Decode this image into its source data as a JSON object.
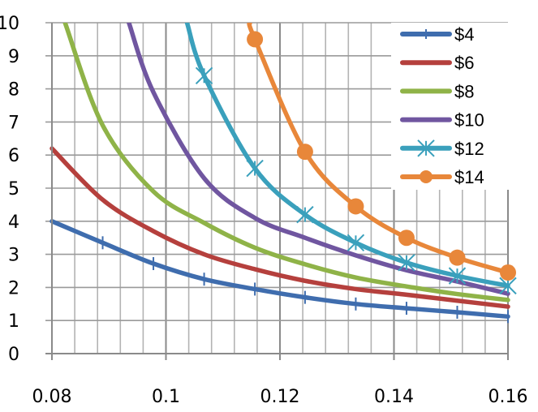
{
  "chart_data": {
    "type": "line",
    "title": "",
    "xlabel": "",
    "ylabel": "",
    "xlim": [
      0.08,
      0.16
    ],
    "ylim": [
      0,
      10
    ],
    "x_ticks": [
      "0.08",
      "0.1",
      "0.12",
      "0.14",
      "0.16"
    ],
    "x_tick_values": [
      0.08,
      0.1,
      0.12,
      0.14,
      0.16
    ],
    "y_ticks": [
      "0",
      "1",
      "2",
      "3",
      "4",
      "5",
      "6",
      "7",
      "8",
      "9",
      "10"
    ],
    "x_minor_step": 0.004,
    "grid": true,
    "legend_position": "top-right",
    "series": [
      {
        "name": "$4",
        "color": "#3F6DAE",
        "marker": "dash",
        "points": [
          [
            0.08,
            4.0
          ],
          [
            0.0889,
            3.35
          ],
          [
            0.0978,
            2.72
          ],
          [
            0.1067,
            2.25
          ],
          [
            0.1156,
            1.95
          ],
          [
            0.1244,
            1.7
          ],
          [
            0.1333,
            1.5
          ],
          [
            0.1422,
            1.37
          ],
          [
            0.1511,
            1.25
          ],
          [
            0.16,
            1.12
          ]
        ]
      },
      {
        "name": "$6",
        "color": "#B5403D",
        "marker": "none",
        "points": [
          [
            0.08,
            6.2
          ],
          [
            0.0889,
            4.65
          ],
          [
            0.0978,
            3.7
          ],
          [
            0.1067,
            3.0
          ],
          [
            0.1156,
            2.55
          ],
          [
            0.1244,
            2.2
          ],
          [
            0.1333,
            1.95
          ],
          [
            0.1422,
            1.78
          ],
          [
            0.1511,
            1.6
          ],
          [
            0.16,
            1.42
          ]
        ]
      },
      {
        "name": "$8",
        "color": "#8FB348",
        "marker": "none",
        "points": [
          [
            0.0823,
            10
          ],
          [
            0.0889,
            6.9
          ],
          [
            0.0978,
            4.9
          ],
          [
            0.1067,
            3.95
          ],
          [
            0.1156,
            3.2
          ],
          [
            0.1244,
            2.7
          ],
          [
            0.1333,
            2.3
          ],
          [
            0.1422,
            2.03
          ],
          [
            0.1511,
            1.8
          ],
          [
            0.16,
            1.62
          ]
        ]
      },
      {
        "name": "$10",
        "color": "#7056A0",
        "marker": "none",
        "points": [
          [
            0.0935,
            10
          ],
          [
            0.0978,
            7.9
          ],
          [
            0.1067,
            5.3
          ],
          [
            0.1156,
            4.1
          ],
          [
            0.1244,
            3.5
          ],
          [
            0.1333,
            2.97
          ],
          [
            0.1422,
            2.52
          ],
          [
            0.1511,
            2.18
          ],
          [
            0.16,
            1.81
          ]
        ]
      },
      {
        "name": "$12",
        "color": "#3AA0BC",
        "marker": "asterisk",
        "points": [
          [
            0.1037,
            10
          ],
          [
            0.1067,
            8.4
          ],
          [
            0.1156,
            5.6
          ],
          [
            0.1244,
            4.2
          ],
          [
            0.1333,
            3.35
          ],
          [
            0.1422,
            2.75
          ],
          [
            0.1511,
            2.35
          ],
          [
            0.16,
            2.05
          ]
        ]
      },
      {
        "name": "$14",
        "color": "#E8873A",
        "marker": "circle",
        "points": [
          [
            0.1147,
            10
          ],
          [
            0.1156,
            9.5
          ],
          [
            0.1244,
            6.1
          ],
          [
            0.1333,
            4.45
          ],
          [
            0.1422,
            3.5
          ],
          [
            0.1511,
            2.9
          ],
          [
            0.16,
            2.45
          ]
        ]
      }
    ]
  }
}
